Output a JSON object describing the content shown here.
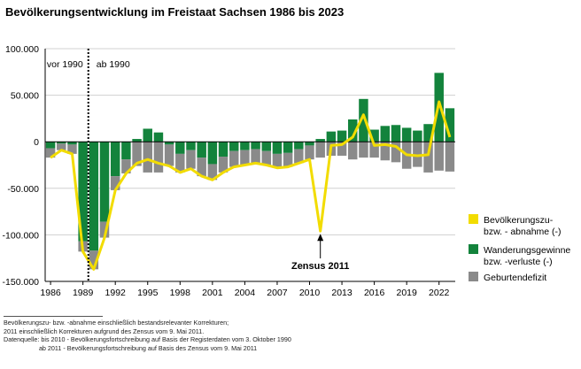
{
  "chart_data": {
    "type": "bar",
    "title": "Bevölkerungsentwicklung im Freistaat Sachsen 1986 bis 2023",
    "x": [
      1986,
      1987,
      1988,
      1989,
      1990,
      1991,
      1992,
      1993,
      1994,
      1995,
      1996,
      1997,
      1998,
      1999,
      2000,
      2001,
      2002,
      2003,
      2004,
      2005,
      2006,
      2007,
      2008,
      2009,
      2010,
      2011,
      2012,
      2013,
      2014,
      2015,
      2016,
      2017,
      2018,
      2019,
      2020,
      2021,
      2022,
      2023
    ],
    "xticks": [
      "1986",
      "1989",
      "1992",
      "1995",
      "1998",
      "2001",
      "2004",
      "2007",
      "2010",
      "2013",
      "2016",
      "2019",
      "2022"
    ],
    "ylim": [
      -150000,
      100000
    ],
    "yticks": [
      100000,
      50000,
      0,
      -50000,
      -100000,
      -150000
    ],
    "ytick_labels": [
      "100.000",
      "50.000",
      "0",
      "-50.000",
      "-100.000",
      "-150.000"
    ],
    "series": [
      {
        "name": "Bevölkerungszu- bzw. - abnahme (-)",
        "type": "line",
        "color": "#f2dc00",
        "values": [
          -17000,
          -9000,
          -13000,
          -118000,
          -137000,
          -103000,
          -52000,
          -34000,
          -23000,
          -19000,
          -23000,
          -26000,
          -33000,
          -29000,
          -37000,
          -41000,
          -33000,
          -27000,
          -25000,
          -23000,
          -25000,
          -28000,
          -27000,
          -23000,
          -19000,
          -96000,
          -4000,
          -3000,
          5000,
          29000,
          -4000,
          -3000,
          -5000,
          -14000,
          -15000,
          -14000,
          43000,
          5000
        ]
      },
      {
        "name": "Wanderungsgewinne bzw. -verluste (-)",
        "type": "bar",
        "color": "#13833c",
        "values": [
          -7000,
          -2000,
          -3000,
          -107000,
          -117000,
          -86000,
          -37000,
          -19000,
          3000,
          14000,
          10000,
          -3000,
          -13000,
          -9000,
          -17000,
          -24000,
          -16000,
          -10000,
          -9000,
          -8000,
          -10000,
          -13000,
          -12000,
          -8000,
          -4000,
          3000,
          11000,
          12000,
          24000,
          46000,
          13000,
          17000,
          18000,
          15000,
          12000,
          19000,
          74000,
          36000
        ]
      },
      {
        "name": "Geburtendefizit",
        "type": "bar",
        "color": "#8a8a8a",
        "values": [
          -10000,
          -7000,
          -10000,
          -11000,
          -20000,
          -17000,
          -15000,
          -15000,
          -26000,
          -33000,
          -33000,
          -23000,
          -20000,
          -20000,
          -20000,
          -17000,
          -17000,
          -17000,
          -16000,
          -15000,
          -15000,
          -15000,
          -15000,
          -15000,
          -15000,
          -17000,
          -15000,
          -15000,
          -19000,
          -17000,
          -17000,
          -20000,
          -22000,
          -29000,
          -27000,
          -33000,
          -31000,
          -32000
        ]
      }
    ],
    "annotations": {
      "before": "vor 1990",
      "after": "ab 1990",
      "census": "Zensus 2011"
    },
    "colors": {
      "line": "#f2dc00",
      "migration": "#13833c",
      "births": "#8a8a8a",
      "grid": "#d0d0d0"
    }
  },
  "footnote": [
    "Bevölkerungszu- bzw. -abnahme einschließlich bestandsrelevanter Korrekturen;",
    "2011 einschließlich Korrekturen aufgrund des Zensus vom 9. Mai 2011.",
    "Datenquelle: bis 2010 - Bevölkerungsfortschreibung auf Basis der Registerdaten vom 3. Oktober 1990",
    "                    ab 2011 - Bevölkerungsfortschreibung auf Basis des Zensus vom 9. Mai 2011"
  ]
}
